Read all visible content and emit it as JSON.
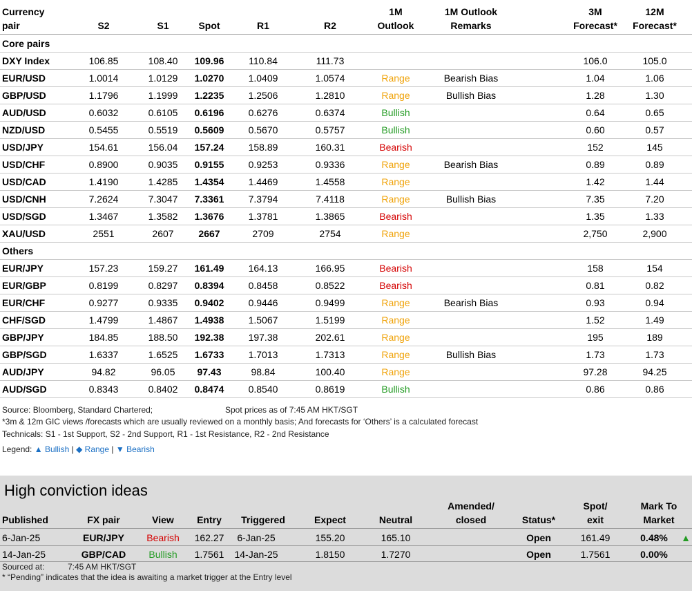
{
  "headers": {
    "pair": [
      "Currency",
      "pair"
    ],
    "s2": "S2",
    "s1": "S1",
    "spot": "Spot",
    "r1": "R1",
    "r2": "R2",
    "outlook": [
      "1M",
      "Outlook"
    ],
    "remarks": [
      "1M Outlook",
      "Remarks"
    ],
    "f3m": [
      "3M",
      "Forecast*"
    ],
    "f12m": [
      "12M",
      "Forecast*"
    ]
  },
  "sections": {
    "core": "Core pairs",
    "others": "Others"
  },
  "core_rows": [
    {
      "pair": "DXY Index",
      "s2": "106.85",
      "s1": "108.40",
      "spot": "109.96",
      "r1": "110.84",
      "r2": "111.73",
      "outlook": "",
      "remarks": "",
      "f3m": "106.0",
      "f12m": "105.0"
    },
    {
      "pair": "EUR/USD",
      "s2": "1.0014",
      "s1": "1.0129",
      "spot": "1.0270",
      "r1": "1.0409",
      "r2": "1.0574",
      "outlook": "Range",
      "remarks": "Bearish Bias",
      "f3m": "1.04",
      "f12m": "1.06"
    },
    {
      "pair": "GBP/USD",
      "s2": "1.1796",
      "s1": "1.1999",
      "spot": "1.2235",
      "r1": "1.2506",
      "r2": "1.2810",
      "outlook": "Range",
      "remarks": "Bullish Bias",
      "f3m": "1.28",
      "f12m": "1.30"
    },
    {
      "pair": "AUD/USD",
      "s2": "0.6032",
      "s1": "0.6105",
      "spot": "0.6196",
      "r1": "0.6276",
      "r2": "0.6374",
      "outlook": "Bullish",
      "remarks": "",
      "f3m": "0.64",
      "f12m": "0.65"
    },
    {
      "pair": "NZD/USD",
      "s2": "0.5455",
      "s1": "0.5519",
      "spot": "0.5609",
      "r1": "0.5670",
      "r2": "0.5757",
      "outlook": "Bullish",
      "remarks": "",
      "f3m": "0.60",
      "f12m": "0.57"
    },
    {
      "pair": "USD/JPY",
      "s2": "154.61",
      "s1": "156.04",
      "spot": "157.24",
      "r1": "158.89",
      "r2": "160.31",
      "outlook": "Bearish",
      "remarks": "",
      "f3m": "152",
      "f12m": "145"
    },
    {
      "pair": "USD/CHF",
      "s2": "0.8900",
      "s1": "0.9035",
      "spot": "0.9155",
      "r1": "0.9253",
      "r2": "0.9336",
      "outlook": "Range",
      "remarks": "Bearish Bias",
      "f3m": "0.89",
      "f12m": "0.89"
    },
    {
      "pair": "USD/CAD",
      "s2": "1.4190",
      "s1": "1.4285",
      "spot": "1.4354",
      "r1": "1.4469",
      "r2": "1.4558",
      "outlook": "Range",
      "remarks": "",
      "f3m": "1.42",
      "f12m": "1.44"
    },
    {
      "pair": "USD/CNH",
      "s2": "7.2624",
      "s1": "7.3047",
      "spot": "7.3361",
      "r1": "7.3794",
      "r2": "7.4118",
      "outlook": "Range",
      "remarks": "Bullish Bias",
      "f3m": "7.35",
      "f12m": "7.20"
    },
    {
      "pair": "USD/SGD",
      "s2": "1.3467",
      "s1": "1.3582",
      "spot": "1.3676",
      "r1": "1.3781",
      "r2": "1.3865",
      "outlook": "Bearish",
      "remarks": "",
      "f3m": "1.35",
      "f12m": "1.33"
    },
    {
      "pair": "XAU/USD",
      "s2": "2551",
      "s1": "2607",
      "spot": "2667",
      "r1": "2709",
      "r2": "2754",
      "outlook": "Range",
      "remarks": "",
      "f3m": "2,750",
      "f12m": "2,900"
    }
  ],
  "other_rows": [
    {
      "pair": "EUR/JPY",
      "s2": "157.23",
      "s1": "159.27",
      "spot": "161.49",
      "r1": "164.13",
      "r2": "166.95",
      "outlook": "Bearish",
      "remarks": "",
      "f3m": "158",
      "f12m": "154"
    },
    {
      "pair": "EUR/GBP",
      "s2": "0.8199",
      "s1": "0.8297",
      "spot": "0.8394",
      "r1": "0.8458",
      "r2": "0.8522",
      "outlook": "Bearish",
      "remarks": "",
      "f3m": "0.81",
      "f12m": "0.82"
    },
    {
      "pair": "EUR/CHF",
      "s2": "0.9277",
      "s1": "0.9335",
      "spot": "0.9402",
      "r1": "0.9446",
      "r2": "0.9499",
      "outlook": "Range",
      "remarks": "Bearish Bias",
      "f3m": "0.93",
      "f12m": "0.94"
    },
    {
      "pair": "CHF/SGD",
      "s2": "1.4799",
      "s1": "1.4867",
      "spot": "1.4938",
      "r1": "1.5067",
      "r2": "1.5199",
      "outlook": "Range",
      "remarks": "",
      "f3m": "1.52",
      "f12m": "1.49"
    },
    {
      "pair": "GBP/JPY",
      "s2": "184.85",
      "s1": "188.50",
      "spot": "192.38",
      "r1": "197.38",
      "r2": "202.61",
      "outlook": "Range",
      "remarks": "",
      "f3m": "195",
      "f12m": "189"
    },
    {
      "pair": "GBP/SGD",
      "s2": "1.6337",
      "s1": "1.6525",
      "spot": "1.6733",
      "r1": "1.7013",
      "r2": "1.7313",
      "outlook": "Range",
      "remarks": "Bullish Bias",
      "f3m": "1.73",
      "f12m": "1.73"
    },
    {
      "pair": "AUD/JPY",
      "s2": "94.82",
      "s1": "96.05",
      "spot": "97.43",
      "r1": "98.84",
      "r2": "100.40",
      "outlook": "Range",
      "remarks": "",
      "f3m": "97.28",
      "f12m": "94.25"
    },
    {
      "pair": "AUD/SGD",
      "s2": "0.8343",
      "s1": "0.8402",
      "spot": "0.8474",
      "r1": "0.8540",
      "r2": "0.8619",
      "outlook": "Bullish",
      "remarks": "",
      "f3m": "0.86",
      "f12m": "0.86"
    }
  ],
  "notes": {
    "source": "Source: Bloomberg, Standard Chartered;",
    "spot_time": "Spot prices as of 7:45 AM HKT/SGT",
    "forecast_note": "*3m & 12m GIC views /forecasts which are usually reviewed on a monthly basis; And forecasts for ‘Others’ is a calculated forecast",
    "technicals": "Technicals: S1 - 1st Support, S2 - 2nd Support, R1 - 1st Resistance, R2 - 2nd Resistance",
    "legend_label": "Legend:",
    "legend_bullish": "▲ Bullish",
    "legend_range": "◆ Range",
    "legend_bearish": "▼ Bearish",
    "legend_sep": "|"
  },
  "high_conviction": {
    "title": "High conviction ideas",
    "headers": {
      "published": "Published",
      "pair": "FX pair",
      "view": "View",
      "entry": "Entry",
      "triggered": "Triggered",
      "expect": "Expect",
      "neutral": "Neutral",
      "amended": [
        "Amended/",
        "closed"
      ],
      "status": "Status*",
      "spot": [
        "Spot/",
        "exit"
      ],
      "mtm": [
        "Mark To",
        "Market"
      ]
    },
    "rows": [
      {
        "published": "6-Jan-25",
        "pair": "EUR/JPY",
        "view": "Bearish",
        "entry": "162.27",
        "triggered": "6-Jan-25",
        "expect": "155.20",
        "neutral": "165.10",
        "amended": "",
        "status": "Open",
        "spot": "161.49",
        "mtm": "0.48%",
        "arrow": "▲"
      },
      {
        "published": "14-Jan-25",
        "pair": "GBP/CAD",
        "view": "Bullish",
        "entry": "1.7561",
        "triggered": "14-Jan-25",
        "expect": "1.8150",
        "neutral": "1.7270",
        "amended": "",
        "status": "Open",
        "spot": "1.7561",
        "mtm": "0.00%",
        "arrow": ""
      }
    ],
    "sourced_label": "Sourced at:",
    "sourced_time": "7:45 AM HKT/SGT",
    "pending_note": "* “Pending” indicates that the idea is awaiting a market trigger at the Entry level"
  },
  "colors": {
    "bearish": "#d40000",
    "range": "#f0a30a",
    "bullish": "#239b23",
    "panel_bg": "#dcdcdc"
  }
}
